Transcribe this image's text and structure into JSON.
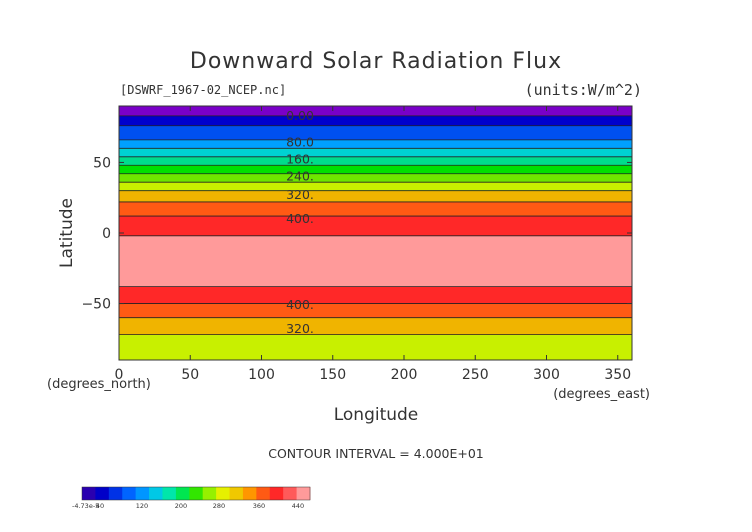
{
  "chart_data": {
    "type": "heatmap",
    "title": "Downward Solar Radiation Flux",
    "file_label": "[DSWRF_1967-02_NCEP.nc]",
    "units_label": "(units:W/m^2)",
    "xlabel": "Longitude",
    "ylabel": "Latitude",
    "x_unit_label": "(degrees_east)",
    "y_unit_label": "(degrees_north)",
    "xlim": [
      0,
      360
    ],
    "ylim": [
      -90,
      90
    ],
    "x_ticks": [
      0,
      50,
      100,
      150,
      200,
      250,
      300,
      350
    ],
    "y_ticks": [
      -50,
      0,
      50
    ],
    "contour_interval_text": "CONTOUR INTERVAL = 4.000E+01",
    "bands": [
      {
        "lat_from": 83,
        "lat_to": 90,
        "value": 0,
        "color": "#7a00c8"
      },
      {
        "lat_from": 76,
        "lat_to": 83,
        "value": 40,
        "color": "#0000cd"
      },
      {
        "lat_from": 66,
        "lat_to": 76,
        "value": 60,
        "color": "#0050f0"
      },
      {
        "lat_from": 60,
        "lat_to": 66,
        "value": 80,
        "color": "#00a0ff"
      },
      {
        "lat_from": 54,
        "lat_to": 60,
        "value": 120,
        "color": "#00d2d2"
      },
      {
        "lat_from": 48,
        "lat_to": 54,
        "value": 160,
        "color": "#00dc8c"
      },
      {
        "lat_from": 42,
        "lat_to": 48,
        "value": 200,
        "color": "#00e000"
      },
      {
        "lat_from": 36,
        "lat_to": 42,
        "value": 240,
        "color": "#6ee600"
      },
      {
        "lat_from": 30,
        "lat_to": 36,
        "value": 280,
        "color": "#c8f000"
      },
      {
        "lat_from": 22,
        "lat_to": 30,
        "value": 320,
        "color": "#f0b400"
      },
      {
        "lat_from": 12,
        "lat_to": 22,
        "value": 360,
        "color": "#ff5a14"
      },
      {
        "lat_from": -2,
        "lat_to": 12,
        "value": 400,
        "color": "#ff2828"
      },
      {
        "lat_from": -38,
        "lat_to": -2,
        "value": 440,
        "color": "#ff9a9a"
      },
      {
        "lat_from": -50,
        "lat_to": -38,
        "value": 400,
        "color": "#ff2828"
      },
      {
        "lat_from": -60,
        "lat_to": -50,
        "value": 360,
        "color": "#ff5a14"
      },
      {
        "lat_from": -72,
        "lat_to": -60,
        "value": 320,
        "color": "#f0b400"
      },
      {
        "lat_from": -90,
        "lat_to": -72,
        "value": 280,
        "color": "#c8f000"
      }
    ],
    "contour_labels": [
      {
        "text": "0.00",
        "lat": 83
      },
      {
        "text": "80.0",
        "lat": 64
      },
      {
        "text": "160.",
        "lat": 52
      },
      {
        "text": "240.",
        "lat": 40
      },
      {
        "text": "320.",
        "lat": 27
      },
      {
        "text": "400.",
        "lat": 10
      },
      {
        "text": "400.",
        "lat": -51
      },
      {
        "text": "320.",
        "lat": -68
      }
    ],
    "colorbar": {
      "colors": [
        "#2a00b0",
        "#0000c8",
        "#0032e6",
        "#0064ff",
        "#0096ff",
        "#00c8e6",
        "#00e6aa",
        "#00e650",
        "#32e600",
        "#96f000",
        "#e6f000",
        "#f0c800",
        "#ff9600",
        "#ff5a14",
        "#ff2828",
        "#ff5a5a",
        "#ff9a9a"
      ],
      "labels": [
        "-4.73e-5",
        "40",
        "120",
        "200",
        "280",
        "360",
        "440"
      ]
    }
  }
}
